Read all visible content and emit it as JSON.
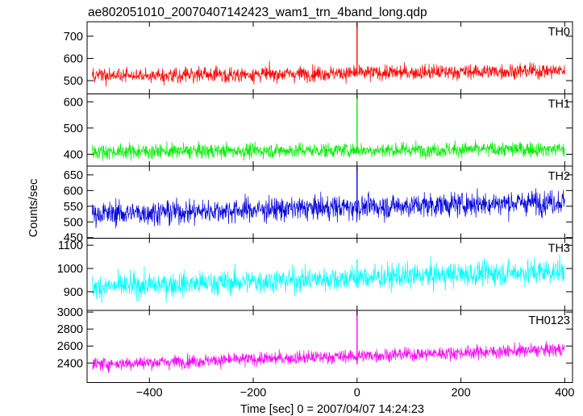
{
  "chart_data": {
    "type": "line",
    "title": "ae802051010_20070407142423_wam1_trn_4band_long.qdp",
    "xlabel": "Time [sec] 0 = 2007/04/07 14:24:23",
    "ylabel": "Counts/sec",
    "xlim": [
      -520,
      415
    ],
    "x_ticks": [
      -400,
      -200,
      0,
      200,
      400
    ],
    "x_tick_labels": [
      "−400",
      "−200",
      "0",
      "200",
      "400"
    ],
    "grid": false,
    "panels": [
      {
        "name": "TH0",
        "color": "#ff0000",
        "ylim": [
          440,
          765
        ],
        "y_ticks": [
          500,
          600,
          700
        ],
        "y_tick_labels": [
          "500",
          "600",
          "700"
        ],
        "baseline_start": 520,
        "baseline_end": 545,
        "noise": 24,
        "spike_value": 760
      },
      {
        "name": "TH1",
        "color": "#00ee00",
        "ylim": [
          355,
          630
        ],
        "y_ticks": [
          400,
          500,
          600
        ],
        "y_tick_labels": [
          "400",
          "500",
          "600"
        ],
        "baseline_start": 410,
        "baseline_end": 420,
        "noise": 20,
        "spike_value": 625
      },
      {
        "name": "TH2",
        "color": "#0000dd",
        "ylim": [
          448,
          678
        ],
        "y_ticks": [
          450,
          500,
          550,
          600,
          650
        ],
        "y_tick_labels": [
          "450",
          "500",
          "550",
          "600",
          "650"
        ],
        "baseline_start": 525,
        "baseline_end": 565,
        "noise": 27,
        "spike_value": 675
      },
      {
        "name": "TH3",
        "color": "#00ffff",
        "ylim": [
          820,
          1130
        ],
        "y_ticks": [
          900,
          1000,
          1100
        ],
        "y_tick_labels": [
          "900",
          "1000",
          "1100"
        ],
        "baseline_start": 920,
        "baseline_end": 990,
        "noise": 37,
        "spike_value": 1040
      },
      {
        "name": "TH0123",
        "color": "#ff00ff",
        "ylim": [
          2170,
          3020
        ],
        "y_ticks": [
          2400,
          2600,
          2800,
          3000
        ],
        "y_tick_labels": [
          "2400",
          "2600",
          "2800",
          "3000"
        ],
        "baseline_start": 2385,
        "baseline_end": 2560,
        "noise": 55,
        "spike_value": 3010
      }
    ]
  }
}
